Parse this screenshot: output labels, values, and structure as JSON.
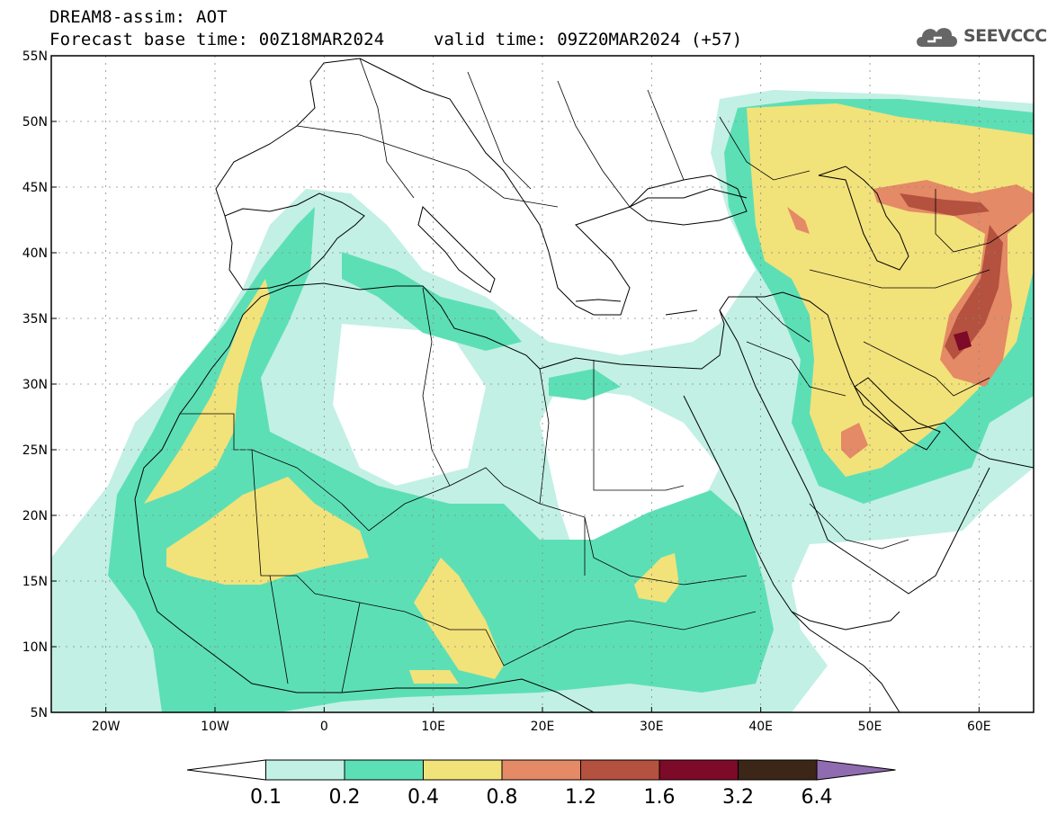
{
  "header": {
    "title_line1": "DREAM8-assim: AOT",
    "title_line2": "Forecast base time: 00Z18MAR2024",
    "valid_time": "valid time: 09Z20MAR2024 (+57)",
    "logo_text": "SEEVCCC"
  },
  "map": {
    "lon_range": [
      -25,
      65
    ],
    "lat_range": [
      5,
      55
    ],
    "lat_labels": [
      "5N",
      "10N",
      "15N",
      "20N",
      "25N",
      "30N",
      "35N",
      "40N",
      "45N",
      "50N",
      "55N"
    ],
    "lon_labels": [
      "20W",
      "10W",
      "0",
      "10E",
      "20E",
      "30E",
      "40E",
      "50E",
      "60E"
    ],
    "grid": true
  },
  "legend": {
    "levels": [
      "0.1",
      "0.2",
      "0.4",
      "0.8",
      "1.2",
      "1.6",
      "3.2",
      "6.4"
    ],
    "colors": [
      "#ffffff",
      "#c2f0e4",
      "#5ddfb6",
      "#f2e27a",
      "#e48a66",
      "#b5513f",
      "#7c0a28",
      "#3b2617",
      "#8f6bb0"
    ]
  }
}
